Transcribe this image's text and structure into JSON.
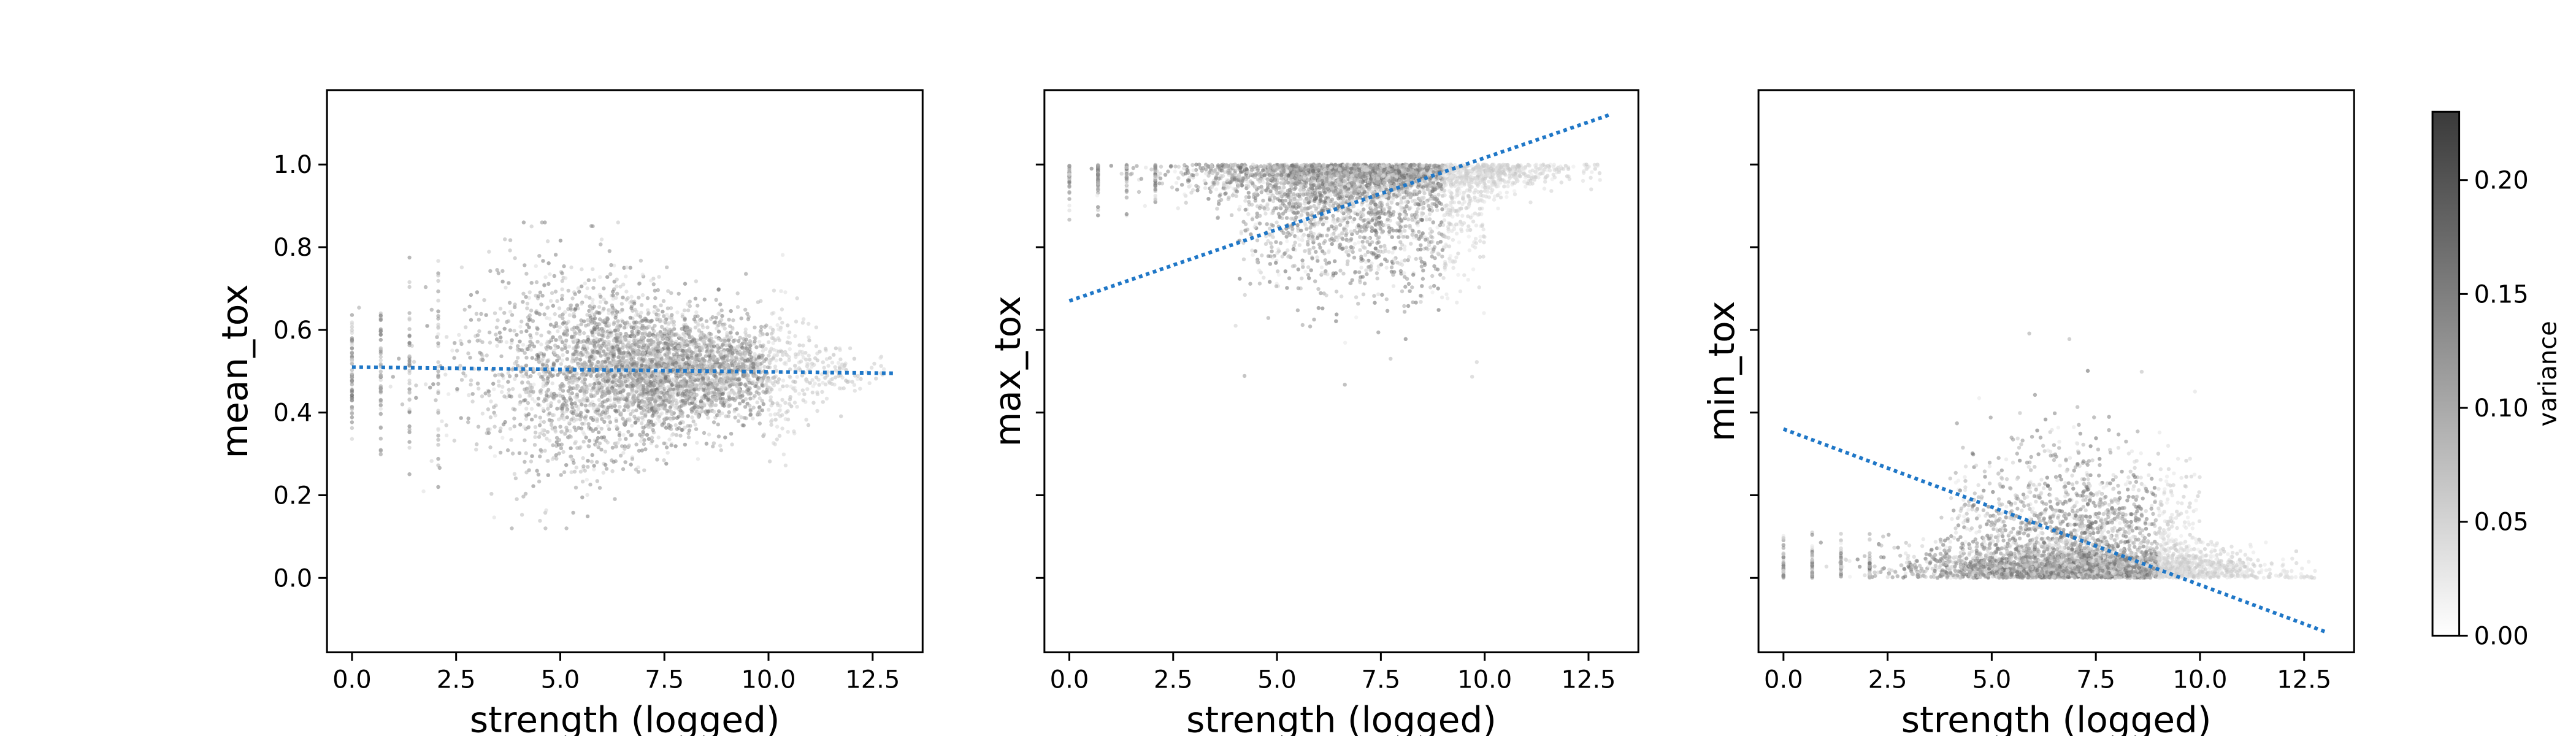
{
  "colors": {
    "trend_line": "#1f77c7",
    "scatter_low": "#ffffff",
    "scatter_high": "#3a3a3a",
    "axes": "#000000"
  },
  "colorbar": {
    "label": "variance",
    "range": [
      0.0,
      0.23
    ],
    "ticks": [
      0.0,
      0.05,
      0.1,
      0.15,
      0.2
    ],
    "tick_labels": [
      "0.00",
      "0.05",
      "0.10",
      "0.15",
      "0.20"
    ],
    "colormap": "greys"
  },
  "chart_data": [
    {
      "type": "scatter",
      "title": "",
      "xlabel": "strength (logged)",
      "ylabel": "mean_tox",
      "xlim": [
        -0.6,
        13.7
      ],
      "ylim": [
        -0.18,
        1.18
      ],
      "xticks": [
        0,
        2.5,
        5,
        7.5,
        10,
        12.5
      ],
      "xtick_labels": [
        "0.0",
        "2.5",
        "5.0",
        "7.5",
        "10.0",
        "12.5"
      ],
      "yticks": [
        0,
        0.2,
        0.4,
        0.6,
        0.8,
        1.0
      ],
      "ytick_labels": [
        "0.0",
        "0.2",
        "0.4",
        "0.6",
        "0.8",
        "1.0"
      ],
      "trend_line": {
        "x": [
          0,
          13
        ],
        "y": [
          0.51,
          0.495
        ],
        "style": "dotted"
      },
      "points": {
        "count": 7000,
        "x_range": [
          0,
          13
        ],
        "description_shape": "symmetric funnel centered at y=0.5 narrowing as x increases",
        "center": 0.5,
        "spread_at_x0": 0.2,
        "spread_at_x7": 0.22,
        "spread_at_x12": 0.03
      }
    },
    {
      "type": "scatter",
      "title": "",
      "xlabel": "strength (logged)",
      "ylabel": "max_tox",
      "xlim": [
        -0.6,
        13.7
      ],
      "ylim": [
        -0.18,
        1.18
      ],
      "xticks": [
        0,
        2.5,
        5,
        7.5,
        10,
        12.5
      ],
      "xtick_labels": [
        "0.0",
        "2.5",
        "5.0",
        "7.5",
        "10.0",
        "12.5"
      ],
      "yticks": [
        0,
        0.2,
        0.4,
        0.6,
        0.8,
        1.0
      ],
      "ytick_labels": [
        "",
        "",
        "",
        "",
        "",
        ""
      ],
      "trend_line": {
        "x": [
          0,
          13
        ],
        "y": [
          0.67,
          1.12
        ],
        "style": "dotted"
      },
      "points": {
        "count": 7000,
        "x_range": [
          0,
          13
        ],
        "description_shape": "points clustered at the ceiling y=1.0 with a tail extending downward around x=5-9",
        "ceiling": 1.0,
        "min_value": 0.3
      }
    },
    {
      "type": "scatter",
      "title": "",
      "xlabel": "strength (logged)",
      "ylabel": "min_tox",
      "xlim": [
        -0.6,
        13.7
      ],
      "ylim": [
        -0.18,
        1.18
      ],
      "xticks": [
        0,
        2.5,
        5,
        7.5,
        10,
        12.5
      ],
      "xtick_labels": [
        "0.0",
        "2.5",
        "5.0",
        "7.5",
        "10.0",
        "12.5"
      ],
      "yticks": [
        0,
        0.2,
        0.4,
        0.6,
        0.8,
        1.0
      ],
      "ytick_labels": [
        "",
        "",
        "",
        "",
        "",
        ""
      ],
      "trend_line": {
        "x": [
          0,
          13
        ],
        "y": [
          0.36,
          -0.13
        ],
        "style": "dotted"
      },
      "points": {
        "count": 7000,
        "x_range": [
          0,
          13
        ],
        "description_shape": "points clustered at the floor y=0.0 with a tail extending upward around x=5-9",
        "floor": 0.0,
        "max_value": 0.72
      }
    }
  ]
}
